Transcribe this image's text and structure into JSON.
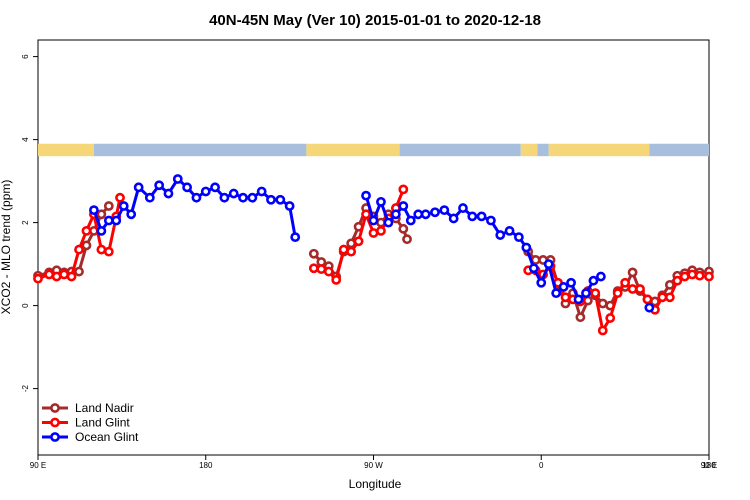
{
  "chart_data": {
    "type": "line",
    "title": "40N-45N May (Ver 10)   2015-01-01 to 2020-12-18",
    "xlabel": "Longitude",
    "ylabel": "XCO2 - MLO trend (ppm)",
    "xlim": [
      90,
      450
    ],
    "ylim": [
      -3.6,
      6.4
    ],
    "x_ticks": [
      {
        "value": 90,
        "label": "90 E"
      },
      {
        "value": 180,
        "label": "180"
      },
      {
        "value": 270,
        "label": "90 W"
      },
      {
        "value": 360,
        "label": "0"
      },
      {
        "value": 450,
        "label": "90 E"
      },
      {
        "value": 540,
        "label": "180"
      }
    ],
    "y_ticks": [
      {
        "value": -2,
        "label": "-2"
      },
      {
        "value": 0,
        "label": "0"
      },
      {
        "value": 2,
        "label": "2"
      },
      {
        "value": 4,
        "label": "4"
      },
      {
        "value": 6,
        "label": "6"
      }
    ],
    "landmask": {
      "y_range": [
        3.6,
        3.9
      ],
      "land_color": "#F5D77A",
      "ocean_color": "#A7BEDC",
      "segments": [
        {
          "x0": 90,
          "x1": 120,
          "type": "land"
        },
        {
          "x0": 120,
          "x1": 234,
          "type": "ocean"
        },
        {
          "x0": 234,
          "x1": 284,
          "type": "land"
        },
        {
          "x0": 284,
          "x1": 349,
          "type": "ocean"
        },
        {
          "x0": 349,
          "x1": 358,
          "type": "land"
        },
        {
          "x0": 358,
          "x1": 364,
          "type": "ocean"
        },
        {
          "x0": 364,
          "x1": 418,
          "type": "land"
        },
        {
          "x0": 418,
          "x1": 450,
          "type": "ocean"
        }
      ]
    },
    "series": [
      {
        "name": "Land Nadir",
        "color": "#A52A2A",
        "segments": [
          [
            [
              90,
              0.72
            ],
            [
              96,
              0.8
            ],
            [
              100,
              0.85
            ],
            [
              104,
              0.8
            ],
            [
              108,
              0.82
            ],
            [
              112,
              0.82
            ],
            [
              116,
              1.45
            ],
            [
              120,
              1.8
            ],
            [
              124,
              2.2
            ],
            [
              128,
              2.4
            ]
          ],
          [
            [
              238,
              1.25
            ],
            [
              242,
              1.05
            ],
            [
              246,
              0.95
            ],
            [
              250,
              0.7
            ],
            [
              254,
              1.3
            ],
            [
              258,
              1.5
            ],
            [
              262,
              1.9
            ],
            [
              266,
              2.35
            ],
            [
              270,
              2.15
            ],
            [
              274,
              2.0
            ],
            [
              278,
              2.2
            ],
            [
              282,
              2.1
            ],
            [
              286,
              1.85
            ],
            [
              288,
              1.6
            ]
          ],
          [
            [
              353,
              1.3
            ],
            [
              357,
              1.1
            ],
            [
              361,
              1.1
            ],
            [
              365,
              1.1
            ],
            [
              369,
              0.5
            ],
            [
              373,
              0.05
            ],
            [
              377,
              0.3
            ],
            [
              381,
              -0.28
            ],
            [
              385,
              0.12
            ],
            [
              389,
              0.25
            ],
            [
              393,
              0.05
            ],
            [
              397,
              0.0
            ],
            [
              401,
              0.35
            ],
            [
              405,
              0.45
            ],
            [
              409,
              0.8
            ],
            [
              413,
              0.35
            ],
            [
              417,
              0.15
            ],
            [
              421,
              0.1
            ],
            [
              425,
              0.25
            ],
            [
              429,
              0.5
            ],
            [
              433,
              0.72
            ],
            [
              437,
              0.78
            ],
            [
              441,
              0.85
            ],
            [
              445,
              0.8
            ],
            [
              450,
              0.82
            ]
          ]
        ]
      },
      {
        "name": "Land Glint",
        "color": "#FF0000",
        "segments": [
          [
            [
              90,
              0.65
            ],
            [
              96,
              0.75
            ],
            [
              100,
              0.7
            ],
            [
              104,
              0.75
            ],
            [
              108,
              0.7
            ],
            [
              112,
              1.35
            ],
            [
              116,
              1.8
            ],
            [
              120,
              2.2
            ],
            [
              124,
              1.35
            ],
            [
              128,
              1.3
            ],
            [
              132,
              2.15
            ],
            [
              134,
              2.6
            ]
          ],
          [
            [
              238,
              0.9
            ],
            [
              242,
              0.88
            ],
            [
              246,
              0.82
            ],
            [
              250,
              0.62
            ],
            [
              254,
              1.35
            ],
            [
              258,
              1.3
            ],
            [
              262,
              1.55
            ],
            [
              266,
              2.2
            ],
            [
              270,
              1.75
            ],
            [
              274,
              1.8
            ],
            [
              278,
              2.1
            ],
            [
              282,
              2.35
            ],
            [
              286,
              2.8
            ]
          ],
          [
            [
              353,
              0.85
            ],
            [
              357,
              0.85
            ],
            [
              361,
              0.75
            ],
            [
              365,
              0.95
            ],
            [
              369,
              0.55
            ],
            [
              373,
              0.2
            ],
            [
              377,
              0.15
            ],
            [
              381,
              0.1
            ],
            [
              385,
              0.35
            ],
            [
              389,
              0.3
            ],
            [
              393,
              -0.6
            ],
            [
              397,
              -0.3
            ],
            [
              401,
              0.3
            ],
            [
              405,
              0.55
            ],
            [
              409,
              0.4
            ],
            [
              413,
              0.4
            ],
            [
              417,
              0.15
            ],
            [
              421,
              -0.1
            ],
            [
              425,
              0.2
            ],
            [
              429,
              0.2
            ],
            [
              433,
              0.6
            ],
            [
              437,
              0.7
            ],
            [
              441,
              0.75
            ],
            [
              445,
              0.72
            ],
            [
              450,
              0.7
            ]
          ]
        ]
      },
      {
        "name": "Ocean Glint",
        "color": "#0000FF",
        "segments": [
          [
            [
              120,
              2.3
            ],
            [
              124,
              1.8
            ],
            [
              128,
              2.05
            ],
            [
              132,
              2.05
            ],
            [
              136,
              2.4
            ],
            [
              140,
              2.2
            ],
            [
              144,
              2.85
            ],
            [
              150,
              2.6
            ],
            [
              155,
              2.9
            ],
            [
              160,
              2.7
            ],
            [
              165,
              3.05
            ],
            [
              170,
              2.85
            ],
            [
              175,
              2.6
            ],
            [
              180,
              2.75
            ],
            [
              185,
              2.85
            ],
            [
              190,
              2.6
            ],
            [
              195,
              2.7
            ],
            [
              200,
              2.6
            ],
            [
              205,
              2.6
            ],
            [
              210,
              2.75
            ],
            [
              215,
              2.55
            ],
            [
              220,
              2.55
            ],
            [
              225,
              2.4
            ],
            [
              228,
              1.65
            ]
          ],
          [
            [
              266,
              2.65
            ],
            [
              270,
              2.05
            ],
            [
              274,
              2.5
            ],
            [
              278,
              2.0
            ],
            [
              282,
              2.2
            ],
            [
              286,
              2.4
            ],
            [
              290,
              2.05
            ],
            [
              294,
              2.2
            ],
            [
              298,
              2.2
            ],
            [
              303,
              2.25
            ],
            [
              308,
              2.3
            ],
            [
              313,
              2.1
            ],
            [
              318,
              2.35
            ],
            [
              323,
              2.15
            ],
            [
              328,
              2.15
            ],
            [
              333,
              2.05
            ],
            [
              338,
              1.7
            ],
            [
              343,
              1.8
            ],
            [
              348,
              1.65
            ],
            [
              352,
              1.4
            ],
            [
              356,
              0.9
            ],
            [
              360,
              0.55
            ],
            [
              364,
              1.0
            ],
            [
              368,
              0.3
            ],
            [
              372,
              0.45
            ],
            [
              376,
              0.55
            ],
            [
              380,
              0.15
            ],
            [
              384,
              0.3
            ],
            [
              388,
              0.6
            ],
            [
              392,
              0.7
            ]
          ],
          [
            [
              418,
              -0.05
            ]
          ]
        ]
      }
    ],
    "legend": {
      "position": "bottom-left",
      "entries": [
        "Land Nadir",
        "Land Glint",
        "Ocean Glint"
      ]
    }
  }
}
